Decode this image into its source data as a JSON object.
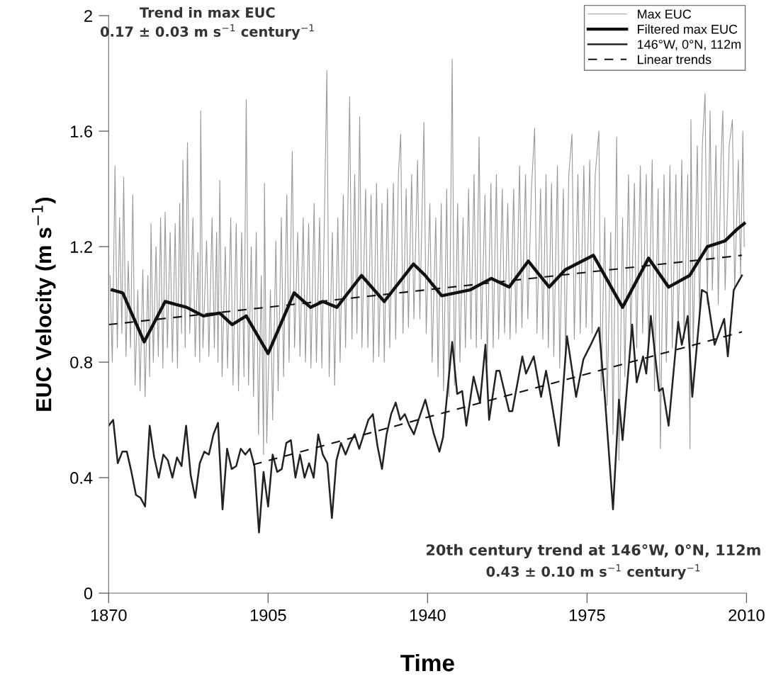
{
  "chart_data": {
    "type": "line",
    "xlabel": "Time",
    "ylabel": "EUC Velocity (m s$^{−1}$)",
    "xlim": [
      1870,
      2010
    ],
    "xticks": [
      1870,
      1905,
      1940,
      1975,
      2010
    ],
    "ylim": [
      0,
      2
    ],
    "yticks": [
      0,
      0.4,
      0.8,
      1.2,
      1.6,
      2
    ],
    "grid": false,
    "legend": "top right",
    "marker": "none",
    "annotations": [
      "Trend in max EUC",
      "0.17 ± 0.03 m s$^{−1}$ century$^{−1}$",
      "20th century trend at 146°W, 0°N, 112m",
      "0.43 ± 0.10 m s$^{−1}$ century$^{−1}$"
    ],
    "series": [
      {
        "name": "Max EUC",
        "color": "#999999",
        "line_style": "solid",
        "x": [
          1870.3,
          1870.8,
          1871.4,
          1871.9,
          1872.4,
          1872.9,
          1873.3,
          1873.8,
          1874.3,
          1874.8,
          1875.3,
          1875.8,
          1876.4,
          1876.9,
          1877.5,
          1878.0,
          1878.6,
          1879.0,
          1879.3,
          1879.8,
          1880.4,
          1880.9,
          1881.4,
          1881.9,
          1882.4,
          1882.9,
          1883.5,
          1884.0,
          1884.6,
          1885.1,
          1885.6,
          1886.0,
          1886.3,
          1886.8,
          1887.3,
          1887.8,
          1888.5,
          1889.0,
          1889.6,
          1890.0,
          1890.2,
          1890.7,
          1891.5,
          1892.0,
          1892.7,
          1893.2,
          1893.7,
          1894.0,
          1894.4,
          1894.9,
          1895.6,
          1896.1,
          1896.8,
          1897.3,
          1898.0,
          1898.5,
          1899.2,
          1899.7,
          1900.2,
          1900.7,
          1901.3,
          1901.8,
          1902.4,
          1902.9,
          1903.5,
          1904.0,
          1904.2,
          1904.7,
          1905.5,
          1906.0,
          1906.7,
          1907.2,
          1907.9,
          1908.4,
          1909.1,
          1909.6,
          1910.3,
          1910.8,
          1911.5,
          1912.0,
          1912.7,
          1913.2,
          1913.9,
          1914.4,
          1915.1,
          1915.6,
          1916.3,
          1916.8,
          1917.9,
          1918.4,
          1919.1,
          1919.6,
          1920.3,
          1920.8,
          1921.5,
          1922.0,
          1922.9,
          1923.4,
          1924.0,
          1924.5,
          1925.1,
          1925.6,
          1926.4,
          1926.9,
          1927.6,
          1928.1,
          1928.8,
          1929.3,
          1930.0,
          1930.5,
          1931.2,
          1931.7,
          1932.5,
          1933.0,
          1933.6,
          1934.1,
          1934.6,
          1935.3,
          1935.8,
          1936.5,
          1937.0,
          1937.8,
          1938.3,
          1939.2,
          1939.7,
          1940.5,
          1941.0,
          1941.8,
          1942.3,
          1943.0,
          1943.5,
          1944.2,
          1944.7,
          1945.4,
          1945.9,
          1946.6,
          1947.1,
          1947.8,
          1948.3,
          1949.0,
          1949.5,
          1950.2,
          1950.7,
          1951.3,
          1951.8,
          1952.6,
          1953.1,
          1953.9,
          1954.4,
          1955.1,
          1955.6,
          1956.4,
          1956.9,
          1957.6,
          1958.1,
          1958.9,
          1959.4,
          1960.2,
          1960.7,
          1961.5,
          1962.0,
          1962.8,
          1963.5,
          1964.0,
          1964.8,
          1965.3,
          1966.0,
          1966.5,
          1967.2,
          1967.7,
          1968.5,
          1969.0,
          1969.8,
          1970.3,
          1971.0,
          1971.7,
          1972.2,
          1973.0,
          1973.5,
          1974.3,
          1974.8,
          1975.6,
          1976.1,
          1976.8,
          1977.6,
          1978.1,
          1978.9,
          1979.4,
          1980.2,
          1980.7,
          1981.5,
          1982.0,
          1982.8,
          1983.3,
          1984.1,
          1984.6,
          1985.4,
          1985.9,
          1986.7,
          1987.2,
          1988.0,
          1988.5,
          1989.3,
          1989.8,
          1990.6,
          1991.1,
          1991.9,
          1992.4,
          1993.2,
          1993.7,
          1994.5,
          1995.0,
          1995.8,
          1996.3,
          1997.1,
          1997.6,
          1997.8,
          1998.3,
          1999.2,
          1999.7,
          2000.3,
          2000.9,
          2001.4,
          2002.0,
          2002.5,
          2003.3,
          2003.8,
          2004.4,
          2004.8,
          2005.3,
          2006.2,
          2006.9,
          2007.4,
          2008.2,
          2008.7,
          2009.2,
          2009.5
        ],
        "values": [
          1.1,
          0.8,
          1.48,
          0.85,
          1.3,
          0.9,
          1.44,
          0.82,
          1.15,
          0.85,
          1.38,
          0.72,
          1.05,
          0.7,
          1.12,
          0.68,
          1.1,
          0.75,
          1.28,
          0.8,
          1.2,
          0.82,
          1.3,
          0.78,
          1.32,
          0.85,
          1.25,
          0.8,
          1.28,
          0.78,
          1.35,
          0.9,
          1.5,
          0.85,
          1.56,
          0.9,
          1.3,
          0.82,
          1.18,
          0.8,
          1.67,
          0.85,
          1.22,
          0.82,
          1.3,
          0.85,
          1.25,
          0.8,
          1.43,
          0.75,
          1.2,
          0.78,
          1.3,
          0.72,
          1.28,
          0.7,
          1.25,
          0.75,
          1.71,
          0.72,
          1.2,
          0.68,
          1.25,
          0.55,
          1.1,
          0.48,
          1.42,
          0.52,
          1.05,
          0.6,
          1.22,
          0.7,
          1.3,
          0.75,
          1.38,
          0.8,
          1.53,
          0.85,
          1.25,
          0.82,
          1.3,
          0.8,
          1.28,
          0.78,
          1.35,
          0.8,
          1.3,
          0.78,
          1.81,
          0.75,
          1.25,
          0.72,
          1.3,
          0.8,
          1.38,
          0.85,
          1.72,
          0.88,
          1.45,
          0.9,
          1.65,
          0.85,
          1.4,
          0.85,
          1.38,
          0.8,
          1.42,
          0.82,
          1.35,
          0.8,
          1.4,
          0.85,
          1.42,
          0.88,
          1.45,
          1.59,
          0.9,
          1.4,
          0.92,
          1.45,
          0.95,
          1.5,
          0.95,
          1.63,
          0.9,
          1.35,
          0.8,
          1.3,
          0.75,
          1.35,
          0.7,
          1.4,
          0.68,
          1.85,
          0.72,
          1.35,
          0.8,
          1.3,
          0.85,
          1.4,
          0.88,
          1.45,
          0.85,
          1.58,
          0.88,
          1.38,
          0.8,
          1.42,
          0.85,
          1.45,
          0.88,
          1.4,
          0.9,
          1.35,
          0.88,
          1.4,
          0.9,
          1.48,
          0.92,
          1.45,
          0.95,
          1.4,
          1.61,
          0.9,
          1.4,
          0.88,
          1.45,
          0.85,
          1.42,
          0.82,
          1.48,
          0.78,
          1.4,
          0.8,
          1.45,
          1.59,
          0.88,
          1.45,
          0.9,
          1.48,
          0.92,
          1.5,
          0.9,
          1.45,
          1.6,
          0.7,
          1.3,
          0.65,
          1.25,
          0.55,
          1.58,
          0.46,
          1.3,
          0.75,
          1.45,
          0.88,
          1.42,
          0.85,
          1.48,
          0.9,
          1.45,
          0.85,
          1.5,
          0.7,
          1.4,
          0.5,
          1.45,
          0.8,
          1.48,
          0.85,
          1.45,
          0.9,
          1.5,
          0.88,
          1.45,
          0.5,
          1.64,
          0.85,
          1.55,
          0.95,
          1.55,
          1.73,
          1.0,
          1.67,
          1.05,
          1.55,
          1.0,
          1.5,
          1.67,
          1.05,
          1.55,
          1.64,
          1.05,
          1.5,
          1.1,
          1.6,
          1.2
        ]
      },
      {
        "name": "Filtered max EUC",
        "color": "#111111",
        "line_style": "solid",
        "x": [
          1870.8,
          1873.1,
          1877.8,
          1882.4,
          1887.1,
          1890.8,
          1894.4,
          1897.1,
          1900.2,
          1905.0,
          1910.7,
          1914.3,
          1917.0,
          1920.1,
          1925.5,
          1930.5,
          1936.9,
          1939.5,
          1943.1,
          1949.3,
          1954.0,
          1957.9,
          1962.1,
          1966.7,
          1970.2,
          1976.4,
          1982.8,
          1988.5,
          1992.9,
          1997.5,
          2001.4,
          2005.3,
          2007.9,
          2009.5
        ],
        "values": [
          1.05,
          1.04,
          0.87,
          1.01,
          0.99,
          0.96,
          0.97,
          0.93,
          0.96,
          0.83,
          1.04,
          0.99,
          1.01,
          0.99,
          1.1,
          1.01,
          1.14,
          1.1,
          1.03,
          1.05,
          1.09,
          1.06,
          1.15,
          1.06,
          1.12,
          1.17,
          0.99,
          1.16,
          1.06,
          1.1,
          1.2,
          1.22,
          1.26,
          1.28
        ]
      },
      {
        "name": "146°W, 0°N, 112m",
        "color": "#222222",
        "line_style": "solid",
        "x": [
          1870,
          1871,
          1872,
          1873,
          1874,
          1875,
          1876,
          1877,
          1878,
          1879,
          1880,
          1881,
          1882,
          1883,
          1884,
          1885,
          1886,
          1887,
          1888,
          1889,
          1890,
          1891,
          1892,
          1893,
          1894,
          1895,
          1896,
          1897,
          1898,
          1899,
          1900,
          1901,
          1902,
          1903,
          1904,
          1905,
          1906,
          1907,
          1908,
          1909,
          1910,
          1911,
          1912,
          1913,
          1914,
          1915,
          1916,
          1917,
          1918,
          1919,
          1920,
          1921,
          1922,
          1923,
          1924,
          1925,
          1926,
          1927,
          1928,
          1929,
          1930,
          1931,
          1932,
          1933,
          1934,
          1935,
          1936,
          1937,
          1938.0,
          1939.5,
          1940.3,
          1941.4,
          1942.6,
          1943.4,
          1945.4,
          1946.5,
          1947.6,
          1948.5,
          1950.1,
          1951.5,
          1952.7,
          1953.5,
          1955.1,
          1955.8,
          1957.9,
          1958.6,
          1960.8,
          1961.6,
          1963.3,
          1964.9,
          1966.0,
          1966.7,
          1968.8,
          1970.6,
          1972.6,
          1974.2,
          1975.8,
          1977.6,
          1978.9,
          1980.7,
          1982.0,
          1982.8,
          1984.9,
          1985.9,
          1987.3,
          1988.0,
          1989.0,
          1990.8,
          1991.6,
          1992.9,
          1995.0,
          1995.8,
          1997.1,
          1998.1,
          2000.2,
          2001.3,
          2003.0,
          2005.1,
          2005.9,
          2007.2,
          2009.0
        ],
        "values": [
          0.58,
          0.6,
          0.45,
          0.49,
          0.49,
          0.42,
          0.34,
          0.33,
          0.3,
          0.58,
          0.47,
          0.4,
          0.48,
          0.46,
          0.4,
          0.47,
          0.44,
          0.58,
          0.41,
          0.33,
          0.45,
          0.49,
          0.48,
          0.55,
          0.59,
          0.29,
          0.5,
          0.43,
          0.44,
          0.5,
          0.48,
          0.5,
          0.44,
          0.21,
          0.42,
          0.3,
          0.48,
          0.42,
          0.43,
          0.52,
          0.53,
          0.4,
          0.48,
          0.4,
          0.45,
          0.4,
          0.55,
          0.48,
          0.45,
          0.26,
          0.46,
          0.52,
          0.48,
          0.52,
          0.55,
          0.5,
          0.55,
          0.6,
          0.62,
          0.51,
          0.43,
          0.55,
          0.62,
          0.66,
          0.6,
          0.62,
          0.58,
          0.55,
          0.6,
          0.67,
          0.62,
          0.55,
          0.49,
          0.54,
          0.87,
          0.69,
          0.7,
          0.58,
          0.75,
          0.66,
          0.86,
          0.6,
          0.77,
          0.77,
          0.63,
          0.63,
          0.82,
          0.76,
          0.82,
          0.68,
          0.77,
          0.71,
          0.51,
          0.89,
          0.68,
          0.81,
          0.86,
          0.92,
          0.68,
          0.29,
          0.67,
          0.53,
          0.93,
          0.73,
          0.82,
          0.76,
          0.96,
          0.7,
          0.71,
          0.58,
          0.94,
          0.86,
          0.96,
          0.68,
          1.05,
          1.04,
          0.86,
          0.95,
          0.82,
          1.05,
          1.1
        ]
      },
      {
        "name": "Linear trends",
        "color": "#111111",
        "line_style": "dashed",
        "x": [
          1870,
          2009
        ],
        "values": [
          0.93,
          1.17
        ]
      },
      {
        "color": "#111111",
        "line_style": "dashed",
        "x": [
          1901.7,
          2009
        ],
        "values": [
          0.445,
          0.905
        ]
      }
    ]
  }
}
